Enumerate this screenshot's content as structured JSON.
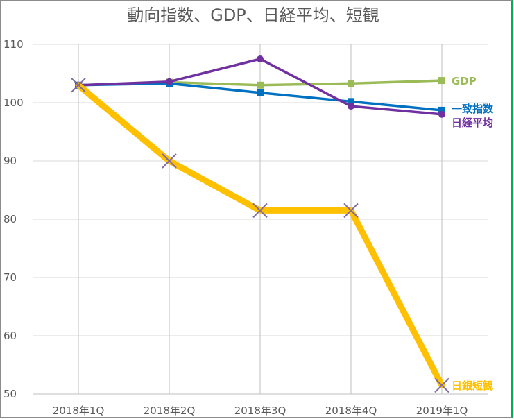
{
  "chart_data": {
    "type": "line",
    "title": "動向指数、GDP、日経平均、短観",
    "categories": [
      "2018年1Q",
      "2018年2Q",
      "2018年3Q",
      "2018年4Q",
      "2019年1Q"
    ],
    "ylim": [
      50,
      110
    ],
    "yticks": [
      "50",
      "60",
      "70",
      "80",
      "90",
      "100",
      "110"
    ],
    "grid": {
      "horizontal": true,
      "vertical": true
    },
    "legend": "inline-labels-right",
    "series": [
      {
        "name": "GDP",
        "values": [
          103.0,
          103.5,
          103.0,
          103.3,
          103.8
        ],
        "color": "#9bbb59",
        "marker": "square"
      },
      {
        "name": "一致指数",
        "values": [
          103.0,
          103.3,
          101.7,
          100.2,
          98.7
        ],
        "color": "#0070c0",
        "marker": "square"
      },
      {
        "name": "日経平均",
        "values": [
          103.0,
          103.6,
          107.5,
          99.4,
          98.0
        ],
        "color": "#7030a0",
        "marker": "circle"
      },
      {
        "name": "日銀短観",
        "values": [
          103.0,
          90.0,
          81.5,
          81.5,
          51.5
        ],
        "color": "#ffc000",
        "marker": "x"
      }
    ]
  }
}
